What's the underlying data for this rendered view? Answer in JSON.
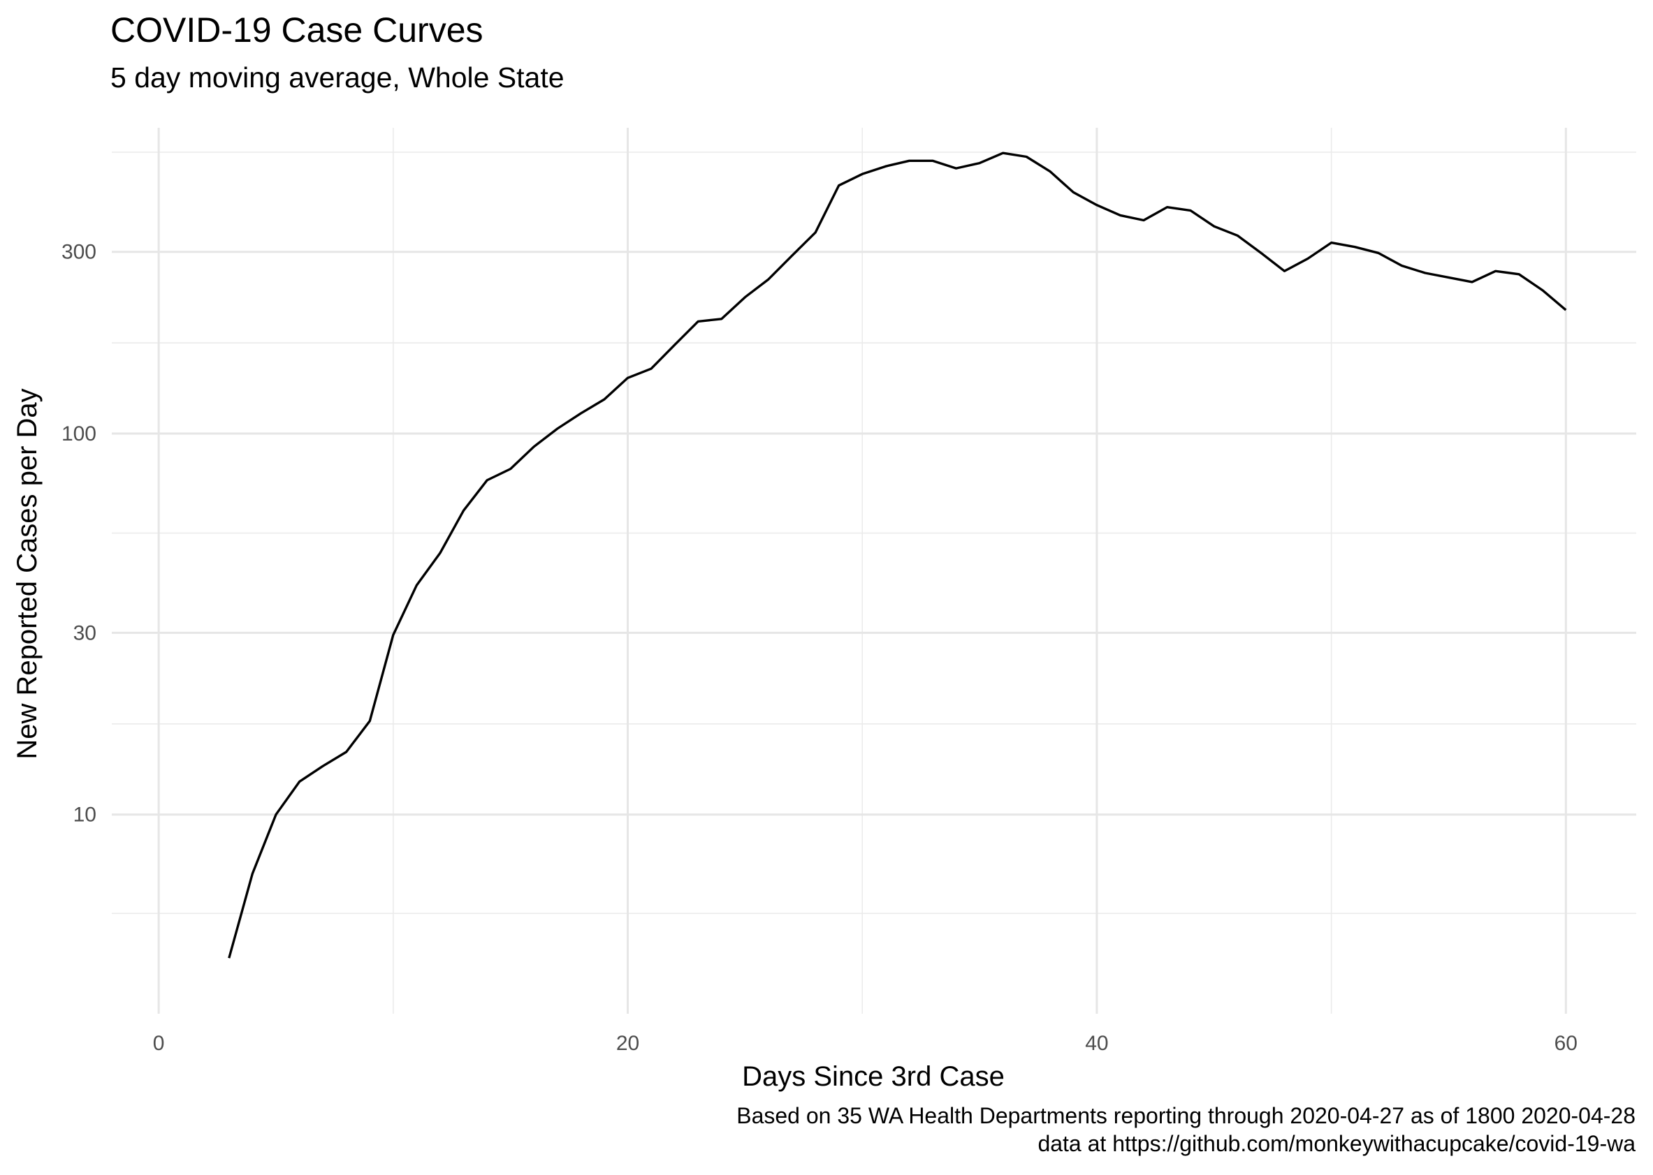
{
  "chart_data": {
    "type": "line",
    "title": "COVID-19 Case Curves",
    "subtitle": "5 day moving average, Whole State",
    "xlabel": "Days Since 3rd Case",
    "ylabel": "New Reported Cases per Day",
    "caption": [
      "Based on 35 WA Health Departments reporting through 2020-04-27 as of 1800 2020-04-28",
      "data at https://github.com/monkeywithacupcake/covid-19-wa"
    ],
    "x_scale": "linear",
    "y_scale": "log10",
    "xlim": [
      -2,
      63
    ],
    "ylim": [
      3.0,
      635
    ],
    "x_ticks": [
      0,
      20,
      40,
      60
    ],
    "x_tick_labels": [
      "0",
      "20",
      "40",
      "60"
    ],
    "x_minor_ticks": [
      10,
      30,
      50
    ],
    "y_ticks": [
      10,
      30,
      100,
      300
    ],
    "y_tick_labels": [
      "10",
      "30",
      "100",
      "300"
    ],
    "y_minor_ticks": [
      5.5,
      17.3,
      54.8,
      173,
      548
    ],
    "grid": true,
    "line_color": "#000000",
    "series": [
      {
        "x": [
          3,
          4,
          5,
          6,
          7,
          8,
          9,
          10,
          11,
          12,
          13,
          14,
          15,
          16,
          17,
          18,
          19,
          20,
          21,
          22,
          23,
          24,
          25,
          26,
          27,
          28,
          29,
          30,
          31,
          32,
          33,
          34,
          35,
          36,
          37,
          38,
          39,
          40,
          41,
          42,
          43,
          44,
          45,
          46,
          47,
          48,
          49,
          50,
          51,
          52,
          53,
          54,
          55,
          56,
          57,
          58,
          59,
          60
        ],
        "y": [
          4.2,
          7.0,
          10.0,
          12.2,
          13.4,
          14.6,
          17.6,
          29.6,
          40.0,
          48.6,
          62.8,
          75.4,
          80.8,
          92.4,
          103,
          113,
          123,
          140,
          148,
          171,
          197,
          200,
          228,
          254,
          293,
          337,
          448,
          480,
          503,
          520,
          520,
          497,
          513,
          545,
          533,
          488,
          430,
          398,
          374,
          363,
          393,
          385,
          350,
          331,
          298,
          267,
          288,
          317,
          309,
          298,
          276,
          264,
          257,
          250,
          267,
          262,
          238,
          211
        ]
      }
    ]
  }
}
